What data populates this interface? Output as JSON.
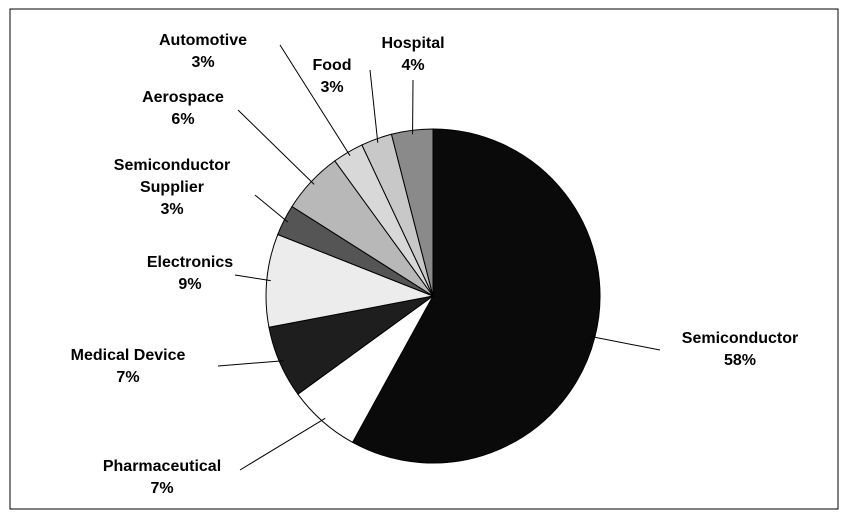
{
  "chart_data": {
    "type": "pie",
    "categories": [
      "Semiconductor",
      "Pharmaceutical",
      "Medical Device",
      "Electronics",
      "Semiconductor Supplier",
      "Aerospace",
      "Automotive",
      "Food",
      "Hospital"
    ],
    "values": [
      58,
      7,
      7,
      9,
      3,
      6,
      3,
      3,
      4
    ],
    "value_labels": [
      "58%",
      "7%",
      "7%",
      "9%",
      "3%",
      "6%",
      "3%",
      "3%",
      "4%"
    ],
    "colors": [
      "#0a0a0a",
      "#ffffff",
      "#1e1e1e",
      "#ececec",
      "#555555",
      "#b8b8b8",
      "#d8d8d8",
      "#c8c8c8",
      "#8a8a8a"
    ]
  }
}
